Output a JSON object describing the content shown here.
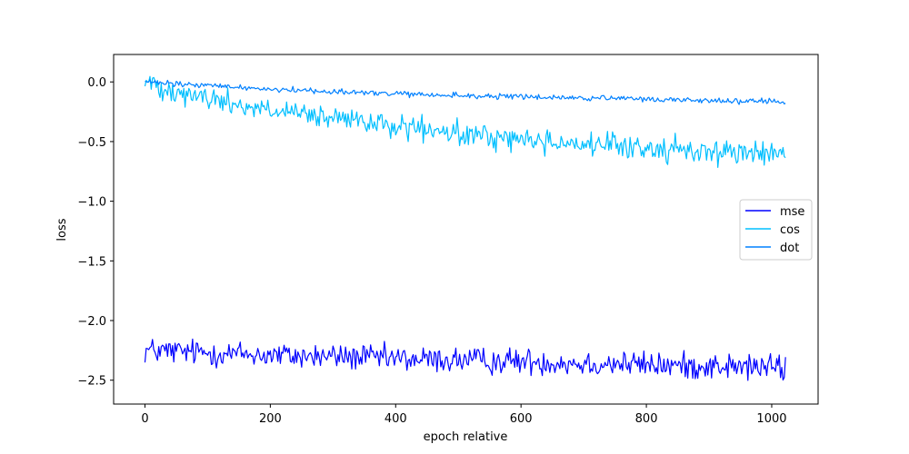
{
  "chart_data": {
    "type": "line",
    "title": "",
    "xlabel": "epoch relative",
    "ylabel": "loss",
    "xlim": [
      -50,
      1074
    ],
    "ylim": [
      -2.7,
      0.23
    ],
    "x_ticks": [
      0,
      200,
      400,
      600,
      800,
      1000
    ],
    "y_ticks": [
      0.0,
      -0.5,
      -1.0,
      -1.5,
      -2.0,
      -2.5
    ],
    "x_tick_labels": [
      "0",
      "200",
      "400",
      "600",
      "800",
      "1000"
    ],
    "y_tick_labels": [
      "0.0",
      "−0.5",
      "−1.0",
      "−1.5",
      "−2.0",
      "−2.5"
    ],
    "grid": false,
    "legend_position": "center-right",
    "series": [
      {
        "name": "mse",
        "color": "#0000ff",
        "x": [
          0,
          50,
          100,
          150,
          200,
          250,
          300,
          350,
          400,
          450,
          500,
          550,
          600,
          650,
          700,
          750,
          800,
          850,
          900,
          950,
          1000,
          1023
        ],
        "values": [
          -2.25,
          -2.26,
          -2.27,
          -2.28,
          -2.29,
          -2.3,
          -2.3,
          -2.31,
          -2.32,
          -2.33,
          -2.33,
          -2.34,
          -2.34,
          -2.35,
          -2.36,
          -2.36,
          -2.37,
          -2.38,
          -2.38,
          -2.39,
          -2.39,
          -2.4
        ],
        "noise": 0.055
      },
      {
        "name": "cos",
        "color": "#00bfff",
        "x": [
          0,
          50,
          100,
          150,
          200,
          250,
          300,
          350,
          400,
          450,
          500,
          550,
          600,
          650,
          700,
          750,
          800,
          850,
          900,
          950,
          1000,
          1023
        ],
        "values": [
          0.0,
          -0.07,
          -0.14,
          -0.19,
          -0.24,
          -0.28,
          -0.31,
          -0.34,
          -0.37,
          -0.41,
          -0.44,
          -0.46,
          -0.48,
          -0.5,
          -0.52,
          -0.54,
          -0.56,
          -0.57,
          -0.58,
          -0.59,
          -0.6,
          -0.61
        ],
        "noise": 0.05
      },
      {
        "name": "dot",
        "color": "#0080ff",
        "x": [
          0,
          50,
          100,
          150,
          200,
          250,
          300,
          350,
          400,
          450,
          500,
          550,
          600,
          650,
          700,
          750,
          800,
          850,
          900,
          950,
          1000,
          1023
        ],
        "values": [
          0.0,
          -0.02,
          -0.03,
          -0.045,
          -0.06,
          -0.07,
          -0.08,
          -0.09,
          -0.1,
          -0.11,
          -0.115,
          -0.12,
          -0.125,
          -0.13,
          -0.135,
          -0.14,
          -0.145,
          -0.15,
          -0.155,
          -0.16,
          -0.165,
          -0.17
        ],
        "noise": 0.012
      }
    ]
  }
}
